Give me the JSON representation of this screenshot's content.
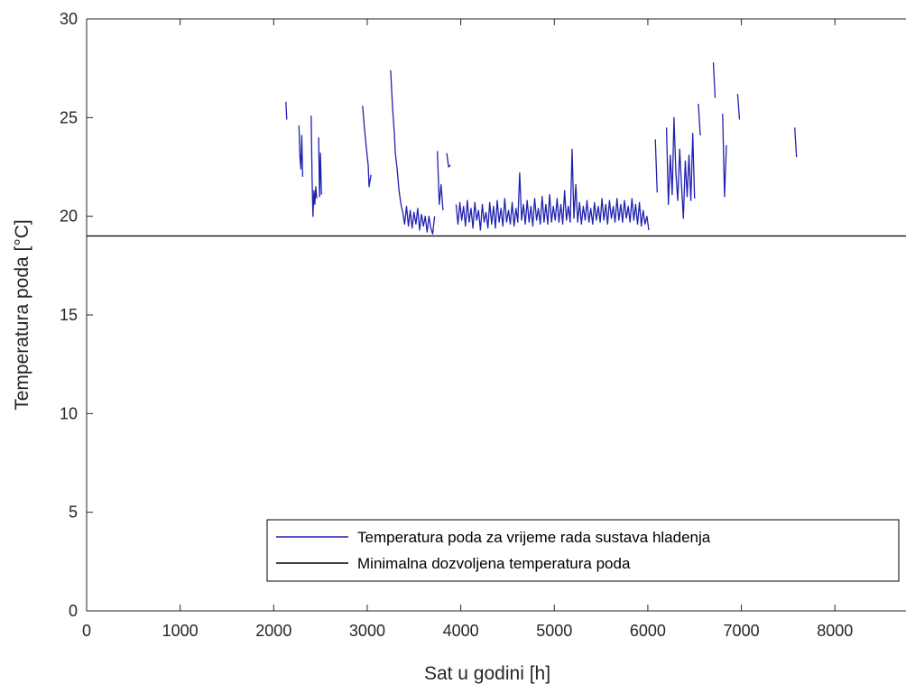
{
  "chart_data": {
    "type": "line",
    "title": "",
    "xlabel": "Sat u godini [h]",
    "ylabel": "Temperatura poda [°C]",
    "xlim": [
      0,
      8760
    ],
    "ylim": [
      0,
      30
    ],
    "xticks": [
      0,
      1000,
      2000,
      3000,
      4000,
      5000,
      6000,
      7000,
      8000
    ],
    "yticks": [
      0,
      5,
      10,
      15,
      20,
      25,
      30
    ],
    "grid": false,
    "legend_position": "bottom-right",
    "colors": {
      "series": "#2020b0",
      "threshold": "#000000"
    },
    "series": [
      {
        "name": "Temperatura poda za vrijeme rada sustava hladenja",
        "kind": "intermittent",
        "segments": [
          {
            "x": [
              2130,
              2140
            ],
            "y": [
              25.8,
              24.9
            ]
          },
          {
            "x": [
              2270,
              2280,
              2290,
              2300,
              2310
            ],
            "y": [
              24.6,
              23.1,
              22.4,
              24.1,
              22.0
            ]
          },
          {
            "x": [
              2400,
              2410,
              2420,
              2430,
              2440,
              2450,
              2460
            ],
            "y": [
              25.1,
              22.0,
              20.0,
              21.3,
              20.6,
              21.5,
              20.9
            ]
          },
          {
            "x": [
              2480,
              2490,
              2500,
              2510
            ],
            "y": [
              24.0,
              21.0,
              23.2,
              21.1
            ]
          },
          {
            "x": [
              2950,
              2970,
              2990,
              3010,
              3020,
              3040
            ],
            "y": [
              25.6,
              24.5,
              23.5,
              22.6,
              21.5,
              22.1
            ]
          },
          {
            "x": [
              3250,
              3270,
              3290,
              3300,
              3320,
              3340,
              3360,
              3380,
              3400,
              3420,
              3440,
              3460,
              3480,
              3500,
              3520,
              3540,
              3560,
              3580,
              3600,
              3620,
              3640,
              3660,
              3680,
              3700,
              3720
            ],
            "y": [
              27.4,
              25.6,
              24.2,
              23.2,
              22.4,
              21.3,
              20.6,
              20.2,
              19.6,
              20.5,
              19.5,
              20.3,
              19.4,
              20.2,
              19.6,
              20.4,
              19.3,
              20.1,
              19.5,
              20.0,
              19.2,
              20.0,
              19.4,
              19.1,
              20.0
            ]
          },
          {
            "x": [
              3750,
              3770,
              3790,
              3810
            ],
            "y": [
              23.3,
              20.6,
              21.6,
              20.3
            ]
          },
          {
            "x": [
              3850,
              3870,
              3890
            ],
            "y": [
              23.2,
              22.5,
              22.6
            ]
          },
          {
            "x": [
              3950,
              3970,
              3990,
              4010,
              4030,
              4050,
              4070,
              4090,
              4110,
              4130,
              4150,
              4170,
              4190,
              4210,
              4230,
              4250,
              4270,
              4290,
              4310,
              4330,
              4350,
              4370,
              4390,
              4410,
              4430,
              4450,
              4470,
              4490,
              4510,
              4530,
              4550,
              4570,
              4590,
              4610,
              4630,
              4650,
              4670,
              4690,
              4710,
              4730,
              4750,
              4770,
              4790,
              4810,
              4830,
              4850,
              4870,
              4890,
              4910,
              4930,
              4950,
              4970,
              4990,
              5010,
              5030,
              5050,
              5070,
              5090,
              5110,
              5130,
              5150,
              5170,
              5190,
              5210,
              5230,
              5250,
              5270,
              5290,
              5310,
              5330,
              5350,
              5370,
              5390,
              5410,
              5430,
              5450,
              5470,
              5490,
              5510,
              5530,
              5550,
              5570,
              5590,
              5610,
              5630,
              5650,
              5670,
              5690,
              5710,
              5730,
              5750,
              5770,
              5790,
              5810,
              5830,
              5850,
              5870,
              5890,
              5910,
              5930,
              5950,
              5970,
              5990,
              6010
            ],
            "y": [
              20.6,
              19.6,
              20.7,
              19.8,
              20.5,
              19.5,
              20.8,
              19.7,
              20.4,
              19.4,
              20.7,
              19.8,
              20.3,
              19.3,
              20.6,
              19.7,
              20.2,
              19.4,
              20.7,
              19.6,
              20.5,
              19.4,
              20.8,
              19.7,
              20.4,
              19.5,
              20.9,
              19.7,
              20.3,
              19.6,
              20.7,
              19.5,
              20.4,
              19.7,
              22.2,
              19.8,
              20.6,
              19.6,
              20.8,
              19.7,
              20.5,
              19.5,
              20.9,
              19.8,
              20.4,
              19.6,
              21.0,
              19.7,
              20.6,
              19.6,
              21.1,
              19.7,
              20.5,
              19.8,
              20.9,
              19.7,
              20.6,
              19.6,
              21.3,
              19.8,
              20.5,
              19.7,
              23.4,
              19.9,
              21.6,
              19.7,
              20.7,
              19.6,
              20.5,
              19.8,
              20.8,
              19.7,
              20.4,
              19.6,
              20.7,
              19.8,
              20.5,
              19.7,
              20.9,
              19.8,
              20.6,
              19.6,
              20.8,
              19.9,
              20.5,
              19.7,
              20.9,
              19.8,
              20.6,
              19.7,
              20.8,
              19.9,
              20.5,
              19.7,
              20.9,
              19.8,
              20.6,
              19.6,
              20.7,
              19.5,
              20.3,
              19.6,
              20.0,
              19.3
            ]
          },
          {
            "x": [
              6080,
              6100
            ],
            "y": [
              23.9,
              21.2
            ]
          },
          {
            "x": [
              6200,
              6220,
              6240,
              6260,
              6280,
              6300,
              6320,
              6340,
              6360,
              6380,
              6400,
              6420,
              6440,
              6460,
              6480,
              6500
            ],
            "y": [
              24.5,
              20.6,
              23.1,
              21.1,
              25.0,
              22.2,
              20.8,
              23.4,
              21.6,
              19.9,
              22.8,
              21.0,
              23.1,
              20.8,
              24.2,
              20.9
            ]
          },
          {
            "x": [
              6540,
              6560
            ],
            "y": [
              25.7,
              24.1
            ]
          },
          {
            "x": [
              6700,
              6720
            ],
            "y": [
              27.8,
              26.0
            ]
          },
          {
            "x": [
              6800,
              6820,
              6840
            ],
            "y": [
              25.2,
              21.0,
              23.6
            ]
          },
          {
            "x": [
              6960,
              6980
            ],
            "y": [
              26.2,
              24.9
            ]
          },
          {
            "x": [
              7570,
              7590
            ],
            "y": [
              24.5,
              23.0
            ]
          }
        ]
      },
      {
        "name": "Minimalna dozvoljena temperatura poda",
        "kind": "constant",
        "x": [
          0,
          8760
        ],
        "y": [
          19,
          19
        ]
      }
    ]
  }
}
